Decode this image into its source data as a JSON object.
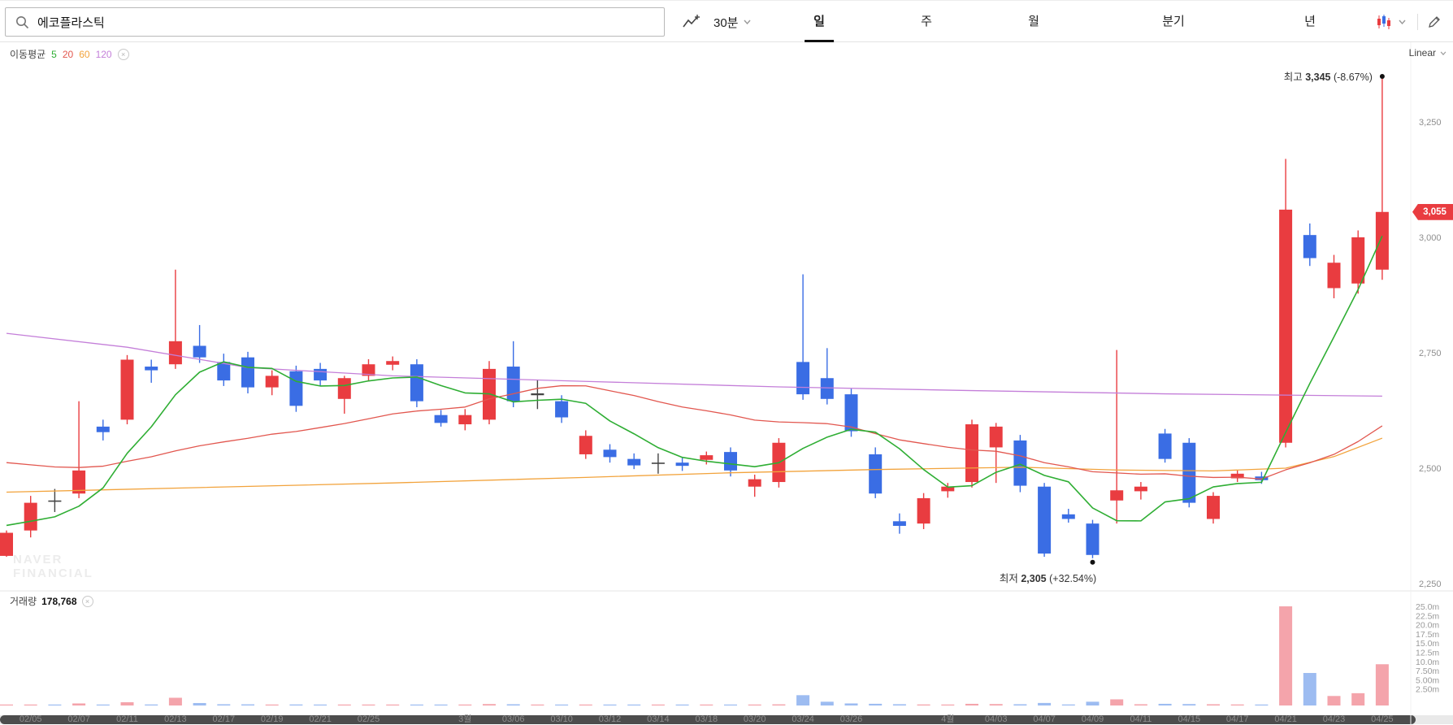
{
  "toolbar": {
    "search": {
      "value": "에코플라스틱"
    },
    "interval": {
      "label": "30분"
    },
    "tabs": [
      {
        "id": "day",
        "label": "일",
        "active": true
      },
      {
        "id": "week",
        "label": "주",
        "active": false
      },
      {
        "id": "month",
        "label": "월",
        "active": false
      },
      {
        "id": "quarter",
        "label": "분기",
        "active": false
      },
      {
        "id": "year",
        "label": "년",
        "active": false
      }
    ],
    "icons": {
      "search": "magnifier",
      "trend": "zigzag-line-plus",
      "interval_chevron": "chevron-down",
      "candle_style": "candlestick-chart",
      "candle_chevron": "chevron-down",
      "edit": "pencil"
    }
  },
  "chart": {
    "legend": {
      "title": "이동평균",
      "periods": [
        {
          "label": "5",
          "color": "#2fae34"
        },
        {
          "label": "20",
          "color": "#e2574f"
        },
        {
          "label": "60",
          "color": "#f2a33c"
        },
        {
          "label": "120",
          "color": "#c47fd9"
        }
      ]
    },
    "scale_label": "Linear",
    "high_annotation": {
      "prefix": "최고",
      "value": "3,345",
      "change": "(-8.67%)"
    },
    "low_annotation": {
      "prefix": "최저",
      "value": "2,305",
      "change": "(+32.54%)"
    },
    "price_badge": "3,055",
    "price_axis": [
      "3,250",
      "3,000",
      "2,750",
      "2,500",
      "2,250"
    ],
    "watermark": [
      "NAVER",
      "FINANCIAL"
    ]
  },
  "volume": {
    "title": "거래량",
    "value": "178,768",
    "axis": [
      "25.0m",
      "22.5m",
      "20.0m",
      "17.5m",
      "15.0m",
      "12.5m",
      "10.0m",
      "7.50m",
      "5.00m",
      "2.50m"
    ]
  },
  "chart_data": {
    "type": "candlestick",
    "ylim": [
      2250,
      3400
    ],
    "price_gridlines": [
      3250,
      3000,
      2750,
      2500,
      2250
    ],
    "volume_max": 25000000,
    "up_color": "#e93c40",
    "down_color": "#3a6de4",
    "doji_color": "#444444",
    "volume_colors": {
      "up": "#f4a4ab",
      "down": "#9dbcf1"
    },
    "ma_colors": {
      "5": "#2fae34",
      "20": "#e2574f",
      "60": "#f2a33c",
      "120": "#c47fd9"
    },
    "ma_seeds": {
      "5": 2380,
      "20": 2520
    },
    "ma60_points": [
      [
        0,
        2448
      ],
      [
        8,
        2458
      ],
      [
        16,
        2468
      ],
      [
        24,
        2480
      ],
      [
        30,
        2490
      ],
      [
        36,
        2497
      ],
      [
        42,
        2502
      ],
      [
        46,
        2496
      ],
      [
        50,
        2494
      ],
      [
        53,
        2500
      ],
      [
        55,
        2525
      ],
      [
        57,
        2565
      ]
    ],
    "ma120_points": [
      [
        0,
        2792
      ],
      [
        5,
        2762
      ],
      [
        10,
        2718
      ],
      [
        16,
        2700
      ],
      [
        24,
        2688
      ],
      [
        32,
        2676
      ],
      [
        40,
        2668
      ],
      [
        48,
        2661
      ],
      [
        57,
        2656
      ]
    ],
    "candle_fields": [
      "date",
      "axis_label",
      "open",
      "high",
      "low",
      "close",
      "volume_k"
    ],
    "candles": [
      [
        "02/04",
        "",
        2310,
        2365,
        2308,
        2360,
        90
      ],
      [
        "02/05",
        "02/05",
        2365,
        2440,
        2350,
        2425,
        130
      ],
      [
        "02/06",
        "",
        2430,
        2455,
        2405,
        2428,
        70
      ],
      [
        "02/07",
        "02/07",
        2445,
        2645,
        2435,
        2495,
        520
      ],
      [
        "02/10",
        "",
        2590,
        2605,
        2560,
        2578,
        160
      ],
      [
        "02/11",
        "02/11",
        2605,
        2745,
        2595,
        2735,
        820
      ],
      [
        "02/12",
        "",
        2720,
        2735,
        2685,
        2712,
        260
      ],
      [
        "02/13",
        "02/13",
        2725,
        2930,
        2715,
        2775,
        1950
      ],
      [
        "02/14",
        "",
        2765,
        2810,
        2728,
        2740,
        620
      ],
      [
        "02/17",
        "02/17",
        2730,
        2748,
        2678,
        2690,
        310
      ],
      [
        "02/18",
        "",
        2740,
        2752,
        2662,
        2675,
        290
      ],
      [
        "02/19",
        "02/19",
        2675,
        2712,
        2658,
        2700,
        210
      ],
      [
        "02/20",
        "",
        2710,
        2722,
        2622,
        2635,
        260
      ],
      [
        "02/21",
        "02/21",
        2715,
        2728,
        2678,
        2690,
        190
      ],
      [
        "02/24",
        "",
        2650,
        2700,
        2618,
        2695,
        230
      ],
      [
        "02/25",
        "02/25",
        2700,
        2736,
        2688,
        2725,
        190
      ],
      [
        "02/26",
        "",
        2724,
        2742,
        2712,
        2732,
        150
      ],
      [
        "02/27",
        "",
        2725,
        2736,
        2632,
        2645,
        210
      ],
      [
        "02/28",
        "",
        2615,
        2626,
        2590,
        2598,
        160
      ],
      [
        "03/04",
        "3월",
        2595,
        2628,
        2582,
        2615,
        140
      ],
      [
        "03/05",
        "",
        2605,
        2732,
        2595,
        2715,
        360
      ],
      [
        "03/06",
        "03/06",
        2720,
        2775,
        2632,
        2645,
        310
      ],
      [
        "03/07",
        "",
        2658,
        2692,
        2628,
        2662,
        160
      ],
      [
        "03/10",
        "03/10",
        2645,
        2658,
        2598,
        2610,
        190
      ],
      [
        "03/11",
        "",
        2530,
        2582,
        2520,
        2570,
        230
      ],
      [
        "03/12",
        "03/12",
        2540,
        2552,
        2512,
        2524,
        150
      ],
      [
        "03/13",
        "",
        2520,
        2532,
        2498,
        2506,
        130
      ],
      [
        "03/14",
        "03/14",
        2510,
        2532,
        2488,
        2512,
        110
      ],
      [
        "03/17",
        "",
        2512,
        2522,
        2494,
        2505,
        95
      ],
      [
        "03/18",
        "03/18",
        2518,
        2536,
        2508,
        2528,
        110
      ],
      [
        "03/19",
        "",
        2535,
        2545,
        2482,
        2495,
        160
      ],
      [
        "03/20",
        "03/20",
        2460,
        2486,
        2438,
        2476,
        140
      ],
      [
        "03/21",
        "",
        2470,
        2565,
        2458,
        2555,
        290
      ],
      [
        "03/24",
        "03/24",
        2730,
        2920,
        2648,
        2660,
        2600
      ],
      [
        "03/25",
        "",
        2695,
        2760,
        2638,
        2650,
        950
      ],
      [
        "03/26",
        "03/26",
        2660,
        2672,
        2568,
        2580,
        520
      ],
      [
        "03/27",
        "",
        2530,
        2545,
        2435,
        2445,
        430
      ],
      [
        "03/28",
        "",
        2385,
        2402,
        2358,
        2375,
        320
      ],
      [
        "03/31",
        "",
        2380,
        2446,
        2368,
        2435,
        260
      ],
      [
        "04/01",
        "4월",
        2450,
        2468,
        2436,
        2460,
        210
      ],
      [
        "04/02",
        "",
        2470,
        2605,
        2458,
        2595,
        420
      ],
      [
        "04/03",
        "04/03",
        2545,
        2598,
        2468,
        2590,
        360
      ],
      [
        "04/04",
        "",
        2560,
        2572,
        2448,
        2462,
        310
      ],
      [
        "04/07",
        "04/07",
        2460,
        2468,
        2308,
        2315,
        640
      ],
      [
        "04/08",
        "",
        2400,
        2412,
        2382,
        2390,
        260
      ],
      [
        "04/09",
        "04/09",
        2380,
        2388,
        2305,
        2312,
        950
      ],
      [
        "04/10",
        "",
        2430,
        2756,
        2380,
        2452,
        1550
      ],
      [
        "04/11",
        "04/11",
        2450,
        2470,
        2432,
        2460,
        310
      ],
      [
        "04/14",
        "",
        2575,
        2585,
        2512,
        2520,
        420
      ],
      [
        "04/15",
        "04/15",
        2555,
        2565,
        2415,
        2425,
        360
      ],
      [
        "04/16",
        "",
        2390,
        2448,
        2380,
        2440,
        310
      ],
      [
        "04/17",
        "04/17",
        2478,
        2495,
        2470,
        2488,
        260
      ],
      [
        "04/18",
        "",
        2482,
        2492,
        2466,
        2474,
        210
      ],
      [
        "04/21",
        "04/21",
        2555,
        3170,
        2545,
        3060,
        25000
      ],
      [
        "04/22",
        "",
        3005,
        3030,
        2938,
        2955,
        8200
      ],
      [
        "04/23",
        "04/23",
        2890,
        2962,
        2868,
        2945,
        2400
      ],
      [
        "04/24",
        "",
        2900,
        3015,
        2878,
        3000,
        3100
      ],
      [
        "04/25",
        "04/25",
        2930,
        3345,
        2908,
        3055,
        10400
      ]
    ]
  }
}
